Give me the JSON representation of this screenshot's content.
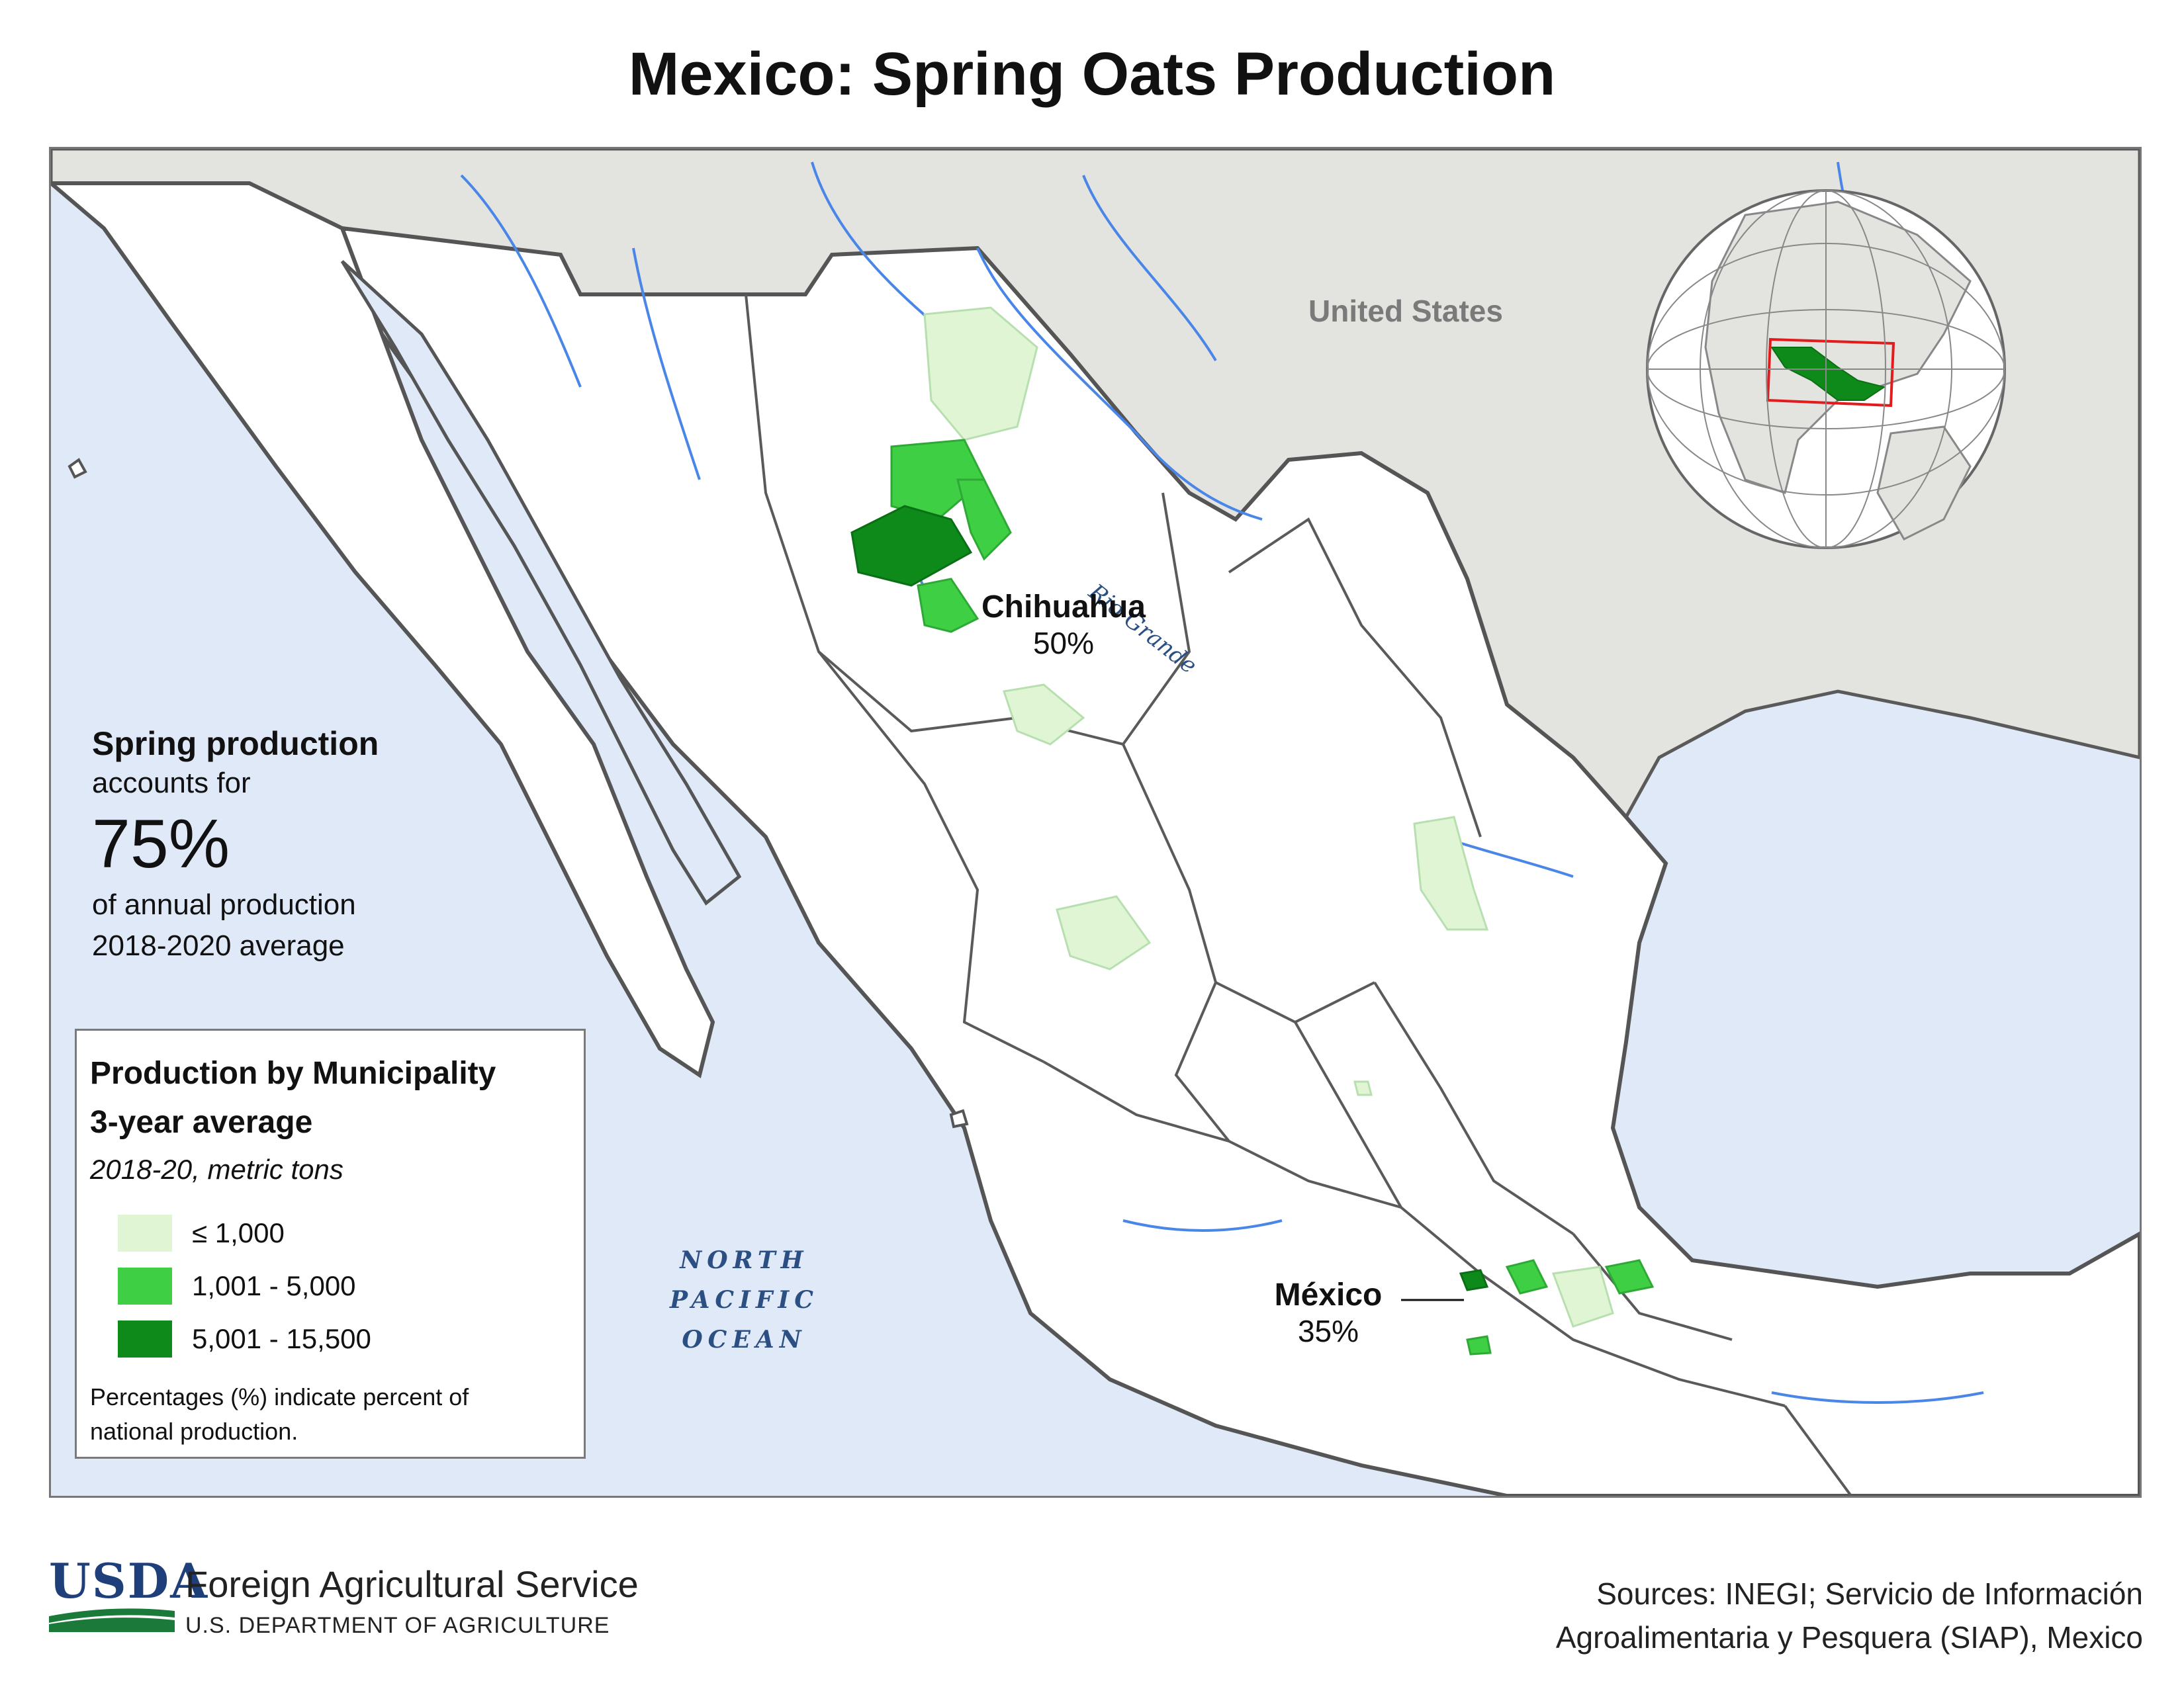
{
  "title": "Mexico: Spring Oats Production",
  "map": {
    "country_label": "United States",
    "river_label": "Rio Grande",
    "ocean_label_lines": [
      "NORTH",
      "PACIFIC",
      "OCEAN"
    ],
    "callouts": [
      {
        "name": "Chihuahua",
        "percent": "50%"
      },
      {
        "name": "México",
        "percent": "35%"
      }
    ],
    "colors": {
      "ocean": "#dfe9f8",
      "land": "#ffffff",
      "other_country": "#e3e3e0",
      "rivers": "#4a86e8",
      "borders": "#5a5a5a",
      "mexico_globe": "#0e8a1a",
      "locator_box": "#e21c1c"
    }
  },
  "summary": {
    "heading": "Spring production",
    "line1": "accounts for",
    "big_value": "75%",
    "line2": "of annual production",
    "line3": "2018-2020 average"
  },
  "legend": {
    "title_line1": "Production by Municipality",
    "title_line2": "3-year average",
    "subtitle": "2018-20, metric tons",
    "items": [
      {
        "label": "≤ 1,000",
        "color": "#dff5d4"
      },
      {
        "label": "1,001 - 5,000",
        "color": "#3ecf45"
      },
      {
        "label": "5,001 - 15,500",
        "color": "#0e8a1a"
      }
    ],
    "note_line1": "Percentages (%) indicate percent of",
    "note_line2": "national production."
  },
  "footer": {
    "logo_text": "USDA",
    "agency": "Foreign Agricultural Service",
    "department": "U.S. DEPARTMENT OF AGRICULTURE",
    "sources_line1": "Sources: INEGI; Servicio de Información",
    "sources_line2": "Agroalimentaria y Pesquera (SIAP), Mexico"
  }
}
